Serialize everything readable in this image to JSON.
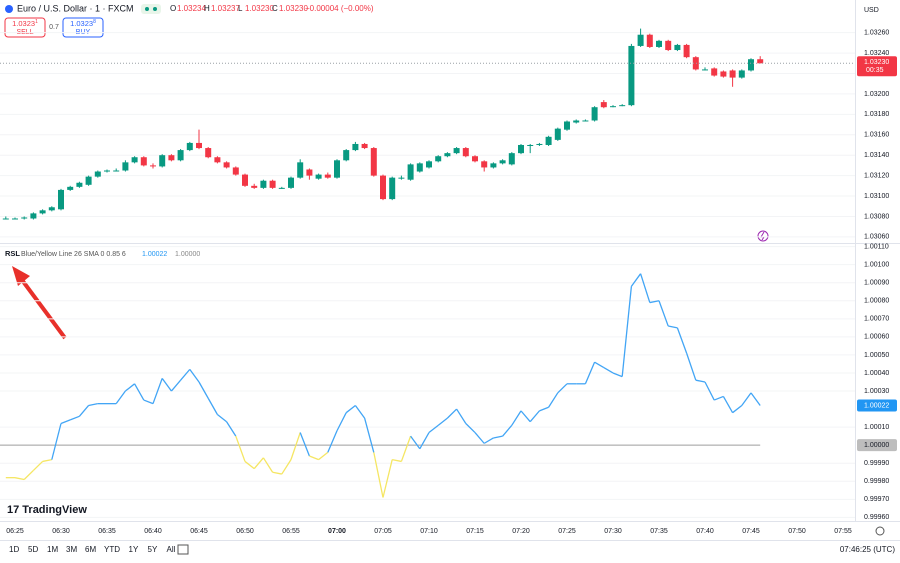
{
  "header": {
    "symbol": "Euro / U.S. Dollar · 1 · FXCM",
    "ohlc": [
      {
        "key": "O",
        "value": "1.03234"
      },
      {
        "key": "H",
        "value": "1.03237"
      },
      {
        "key": "L",
        "value": "1.03230"
      },
      {
        "key": "C",
        "value": "1.03230"
      }
    ],
    "change": "−0.00004 (−0.00%)",
    "sell": {
      "price": "1.0323",
      "pip": "1",
      "label": "SELL"
    },
    "spread": "0.7",
    "buy": {
      "price": "1.0323",
      "pip": "8",
      "label": "BUY"
    },
    "currency": "USD"
  },
  "chart_data": [
    {
      "type": "candlestick",
      "up_color": "#089981",
      "down_color": "#f23645",
      "x": [
        "06:24",
        "06:25",
        "06:26",
        "06:27",
        "06:28",
        "06:29",
        "06:30",
        "06:31",
        "06:32",
        "06:33",
        "06:34",
        "06:35",
        "06:36",
        "06:37",
        "06:38",
        "06:39",
        "06:40",
        "06:41",
        "06:42",
        "06:43",
        "06:44",
        "06:45",
        "06:46",
        "06:47",
        "06:48",
        "06:49",
        "06:50",
        "06:51",
        "06:52",
        "06:53",
        "06:54",
        "06:55",
        "06:56",
        "06:57",
        "06:58",
        "06:59",
        "07:00",
        "07:01",
        "07:02",
        "07:03",
        "07:04",
        "07:05",
        "07:06",
        "07:07",
        "07:08",
        "07:09",
        "07:10",
        "07:11",
        "07:12",
        "07:13",
        "07:14",
        "07:15",
        "07:16",
        "07:17",
        "07:18",
        "07:19",
        "07:20",
        "07:21",
        "07:22",
        "07:23",
        "07:24",
        "07:25",
        "07:26",
        "07:27",
        "07:28",
        "07:29",
        "07:30",
        "07:31",
        "07:32",
        "07:33",
        "07:34",
        "07:35",
        "07:36",
        "07:37",
        "07:38",
        "07:39",
        "07:40",
        "07:41",
        "07:42",
        "07:43",
        "07:44",
        "07:45",
        "07:46"
      ],
      "open": [
        1.03078,
        1.03078,
        1.03078,
        1.03078,
        1.03083,
        1.03086,
        1.03087,
        1.03106,
        1.03109,
        1.03111,
        1.03119,
        1.03124,
        1.03125,
        1.03125,
        1.03133,
        1.03138,
        1.0313,
        1.03129,
        1.0314,
        1.03135,
        1.03145,
        1.03152,
        1.03147,
        1.03138,
        1.03133,
        1.03128,
        1.03121,
        1.0311,
        1.03108,
        1.03115,
        1.03108,
        1.03108,
        1.03118,
        1.03126,
        1.03117,
        1.03121,
        1.03118,
        1.03135,
        1.03145,
        1.03151,
        1.03147,
        1.0312,
        1.03097,
        1.03118,
        1.03116,
        1.03124,
        1.03128,
        1.03134,
        1.03139,
        1.03142,
        1.03147,
        1.03139,
        1.03134,
        1.03128,
        1.03132,
        1.03131,
        1.03142,
        1.03149,
        1.0315,
        1.0315,
        1.03155,
        1.03165,
        1.03172,
        1.03174,
        1.03174,
        1.03192,
        1.03188,
        1.03189,
        1.03189,
        1.03247,
        1.03258,
        1.03246,
        1.03252,
        1.03243,
        1.03248,
        1.03236,
        1.03224,
        1.03225,
        1.03222,
        1.03223,
        1.03216,
        1.03223,
        1.03234
      ],
      "high": [
        1.0308,
        1.03079,
        1.0308,
        1.03084,
        1.03087,
        1.0309,
        1.03107,
        1.0311,
        1.03114,
        1.0312,
        1.03125,
        1.03126,
        1.03127,
        1.03135,
        1.03139,
        1.03139,
        1.03132,
        1.03141,
        1.03141,
        1.03146,
        1.03153,
        1.03165,
        1.03148,
        1.03139,
        1.03134,
        1.03129,
        1.03122,
        1.03112,
        1.03116,
        1.03116,
        1.03109,
        1.03119,
        1.03136,
        1.03127,
        1.03122,
        1.03123,
        1.03136,
        1.03146,
        1.03153,
        1.03152,
        1.03148,
        1.03121,
        1.03119,
        1.0312,
        1.03132,
        1.03133,
        1.03135,
        1.0314,
        1.03143,
        1.03148,
        1.03148,
        1.0314,
        1.03135,
        1.03133,
        1.03136,
        1.03143,
        1.03151,
        1.03151,
        1.03152,
        1.03159,
        1.03167,
        1.03174,
        1.03175,
        1.03175,
        1.03188,
        1.03194,
        1.03189,
        1.0319,
        1.03249,
        1.03264,
        1.03259,
        1.03253,
        1.03253,
        1.03249,
        1.03249,
        1.03237,
        1.03226,
        1.03226,
        1.03223,
        1.03224,
        1.03224,
        1.03235,
        1.03237
      ],
      "low": [
        1.03077,
        1.03077,
        1.03077,
        1.03077,
        1.03082,
        1.03085,
        1.03086,
        1.03105,
        1.03108,
        1.0311,
        1.03118,
        1.03123,
        1.03124,
        1.03124,
        1.03132,
        1.03129,
        1.03127,
        1.03128,
        1.03134,
        1.03134,
        1.03144,
        1.03146,
        1.03137,
        1.03132,
        1.03127,
        1.0312,
        1.03109,
        1.03107,
        1.03107,
        1.03107,
        1.03107,
        1.03107,
        1.03117,
        1.03116,
        1.03116,
        1.03117,
        1.03117,
        1.03134,
        1.03144,
        1.03146,
        1.03119,
        1.03096,
        1.03096,
        1.03116,
        1.03115,
        1.03123,
        1.03127,
        1.03133,
        1.03138,
        1.03141,
        1.03138,
        1.03133,
        1.03124,
        1.03127,
        1.03131,
        1.0313,
        1.03141,
        1.03142,
        1.03149,
        1.03149,
        1.03154,
        1.03164,
        1.03171,
        1.03173,
        1.03173,
        1.03186,
        1.03187,
        1.03188,
        1.03188,
        1.03246,
        1.03245,
        1.03245,
        1.03242,
        1.03242,
        1.03235,
        1.03223,
        1.03223,
        1.03217,
        1.03216,
        1.03207,
        1.03215,
        1.03222,
        1.0323
      ],
      "close": [
        1.03078,
        1.03078,
        1.03079,
        1.03083,
        1.03086,
        1.03089,
        1.03106,
        1.03109,
        1.03113,
        1.03119,
        1.03124,
        1.03125,
        1.03125,
        1.03133,
        1.03138,
        1.0313,
        1.03129,
        1.0314,
        1.03135,
        1.03145,
        1.03152,
        1.03147,
        1.03138,
        1.03133,
        1.03128,
        1.03121,
        1.0311,
        1.03108,
        1.03115,
        1.03108,
        1.03108,
        1.03118,
        1.03133,
        1.0312,
        1.03121,
        1.03118,
        1.03135,
        1.03145,
        1.03151,
        1.03147,
        1.0312,
        1.03097,
        1.03118,
        1.03118,
        1.03131,
        1.03132,
        1.03134,
        1.03139,
        1.03142,
        1.03147,
        1.03139,
        1.03134,
        1.03128,
        1.03132,
        1.03135,
        1.03142,
        1.0315,
        1.0315,
        1.03151,
        1.03158,
        1.03166,
        1.03173,
        1.03174,
        1.03174,
        1.03187,
        1.03187,
        1.03188,
        1.03189,
        1.03247,
        1.03258,
        1.03246,
        1.03252,
        1.03243,
        1.03248,
        1.03236,
        1.03224,
        1.03224,
        1.03218,
        1.03217,
        1.03216,
        1.03223,
        1.03234,
        1.0323
      ],
      "ylim": [
        1.03054,
        1.03292
      ],
      "yticks": [
        {
          "value": 1.0326,
          "label": "1.03260"
        },
        {
          "value": 1.0324,
          "label": "1.03240"
        },
        {
          "value": 1.0322,
          "label": "1.03220"
        },
        {
          "value": 1.032,
          "label": "1.03200"
        },
        {
          "value": 1.0318,
          "label": "1.03180"
        },
        {
          "value": 1.0316,
          "label": "1.03160"
        },
        {
          "value": 1.0314,
          "label": "1.03140"
        },
        {
          "value": 1.0312,
          "label": "1.03120"
        },
        {
          "value": 1.031,
          "label": "1.03100"
        },
        {
          "value": 1.0308,
          "label": "1.03080"
        },
        {
          "value": 1.0306,
          "label": "1.03060"
        }
      ],
      "last_label": "1.03230",
      "countdown": "00:35"
    },
    {
      "type": "line",
      "title": "RSL",
      "subtitle": "Blue/Yellow Line 26 SMA 0 0.85 6",
      "legend_values": [
        "1.00022",
        "1.00000"
      ],
      "level": 1,
      "colors": {
        "above": "#42a5f5",
        "below": "#f5e663",
        "level": "#9e9e9e"
      },
      "values": [
        0.99982,
        0.99982,
        0.99981,
        0.99986,
        0.99991,
        0.99992,
        1.00012,
        1.00014,
        1.00016,
        1.00022,
        1.00023,
        1.00023,
        1.00023,
        1.0003,
        1.00034,
        1.00025,
        1.00023,
        1.00037,
        1.0003,
        1.00036,
        1.00042,
        1.00035,
        1.00026,
        1.00017,
        1.00013,
        1.00005,
        0.99991,
        0.99987,
        0.99993,
        0.99985,
        0.99984,
        0.99992,
        1.00007,
        0.99994,
        0.99992,
        0.99996,
        1.00008,
        1.00018,
        1.00022,
        1.00015,
        0.99996,
        0.99971,
        0.99992,
        0.99991,
        1.00005,
        0.99998,
        1.00007,
        1.00011,
        1.00015,
        1.0002,
        1.00012,
        1.00007,
        1.00001,
        1.00004,
        1.00005,
        1.00011,
        1.00019,
        1.00013,
        1.00019,
        1.00021,
        1.00029,
        1.00034,
        1.00034,
        1.00034,
        1.00046,
        1.00043,
        1.0004,
        1.00038,
        1.00088,
        1.00095,
        1.00079,
        1.0008,
        1.00066,
        1.00065,
        1.00051,
        1.00036,
        1.00035,
        1.00025,
        1.00027,
        1.00018,
        1.00022,
        1.00029,
        1.00022
      ],
      "ylim": [
        0.99958,
        1.00112
      ],
      "yticks": [
        {
          "value": 1.0011,
          "label": "1.00110"
        },
        {
          "value": 1.001,
          "label": "1.00100"
        },
        {
          "value": 1.0009,
          "label": "1.00090"
        },
        {
          "value": 1.0008,
          "label": "1.00080"
        },
        {
          "value": 1.0007,
          "label": "1.00070"
        },
        {
          "value": 1.0006,
          "label": "1.00060"
        },
        {
          "value": 1.0005,
          "label": "1.00050"
        },
        {
          "value": 1.0004,
          "label": "1.00040"
        },
        {
          "value": 1.0003,
          "label": "1.00030"
        },
        {
          "value": 1.0001,
          "label": "1.00010"
        },
        {
          "value": 0.9999,
          "label": "0.99990"
        },
        {
          "value": 0.9998,
          "label": "0.99980"
        },
        {
          "value": 0.9997,
          "label": "0.99970"
        },
        {
          "value": 0.9996,
          "label": "0.99960"
        }
      ],
      "xticks": [
        "06:25",
        "06:30",
        "06:35",
        "06:40",
        "06:45",
        "06:50",
        "06:55",
        "07:00",
        "07:05",
        "07:10",
        "07:15",
        "07:20",
        "07:25",
        "07:30",
        "07:35",
        "07:40",
        "07:45",
        "07:50",
        "07:55"
      ]
    }
  ],
  "footer": {
    "brand": "TradingView",
    "ranges": [
      "1D",
      "5D",
      "1M",
      "3M",
      "6M",
      "YTD",
      "1Y",
      "5Y",
      "All"
    ],
    "clock": "07:46:25 (UTC)"
  }
}
